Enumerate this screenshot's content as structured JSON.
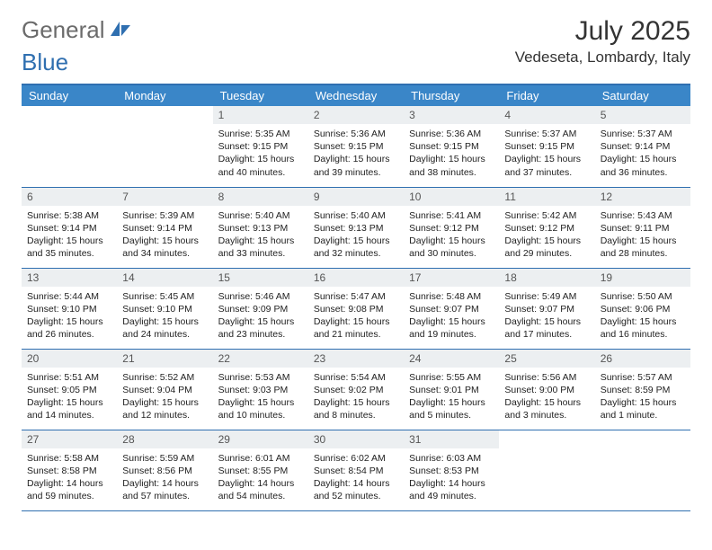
{
  "logo": {
    "word1": "General",
    "word2": "Blue"
  },
  "title": "July 2025",
  "location": "Vedeseta, Lombardy, Italy",
  "colors": {
    "header_bg": "#3a86c8",
    "header_text": "#ffffff",
    "border": "#2f6fb0",
    "daynum_bg": "#eceff1",
    "daynum_text": "#555555",
    "body_text": "#222222",
    "logo_blue": "#2f6fb0",
    "logo_gray": "#6b6b6b"
  },
  "day_labels": [
    "Sunday",
    "Monday",
    "Tuesday",
    "Wednesday",
    "Thursday",
    "Friday",
    "Saturday"
  ],
  "weeks": [
    [
      null,
      null,
      {
        "n": "1",
        "sr": "5:35 AM",
        "ss": "9:15 PM",
        "dl": "15 hours and 40 minutes."
      },
      {
        "n": "2",
        "sr": "5:36 AM",
        "ss": "9:15 PM",
        "dl": "15 hours and 39 minutes."
      },
      {
        "n": "3",
        "sr": "5:36 AM",
        "ss": "9:15 PM",
        "dl": "15 hours and 38 minutes."
      },
      {
        "n": "4",
        "sr": "5:37 AM",
        "ss": "9:15 PM",
        "dl": "15 hours and 37 minutes."
      },
      {
        "n": "5",
        "sr": "5:37 AM",
        "ss": "9:14 PM",
        "dl": "15 hours and 36 minutes."
      }
    ],
    [
      {
        "n": "6",
        "sr": "5:38 AM",
        "ss": "9:14 PM",
        "dl": "15 hours and 35 minutes."
      },
      {
        "n": "7",
        "sr": "5:39 AM",
        "ss": "9:14 PM",
        "dl": "15 hours and 34 minutes."
      },
      {
        "n": "8",
        "sr": "5:40 AM",
        "ss": "9:13 PM",
        "dl": "15 hours and 33 minutes."
      },
      {
        "n": "9",
        "sr": "5:40 AM",
        "ss": "9:13 PM",
        "dl": "15 hours and 32 minutes."
      },
      {
        "n": "10",
        "sr": "5:41 AM",
        "ss": "9:12 PM",
        "dl": "15 hours and 30 minutes."
      },
      {
        "n": "11",
        "sr": "5:42 AM",
        "ss": "9:12 PM",
        "dl": "15 hours and 29 minutes."
      },
      {
        "n": "12",
        "sr": "5:43 AM",
        "ss": "9:11 PM",
        "dl": "15 hours and 28 minutes."
      }
    ],
    [
      {
        "n": "13",
        "sr": "5:44 AM",
        "ss": "9:10 PM",
        "dl": "15 hours and 26 minutes."
      },
      {
        "n": "14",
        "sr": "5:45 AM",
        "ss": "9:10 PM",
        "dl": "15 hours and 24 minutes."
      },
      {
        "n": "15",
        "sr": "5:46 AM",
        "ss": "9:09 PM",
        "dl": "15 hours and 23 minutes."
      },
      {
        "n": "16",
        "sr": "5:47 AM",
        "ss": "9:08 PM",
        "dl": "15 hours and 21 minutes."
      },
      {
        "n": "17",
        "sr": "5:48 AM",
        "ss": "9:07 PM",
        "dl": "15 hours and 19 minutes."
      },
      {
        "n": "18",
        "sr": "5:49 AM",
        "ss": "9:07 PM",
        "dl": "15 hours and 17 minutes."
      },
      {
        "n": "19",
        "sr": "5:50 AM",
        "ss": "9:06 PM",
        "dl": "15 hours and 16 minutes."
      }
    ],
    [
      {
        "n": "20",
        "sr": "5:51 AM",
        "ss": "9:05 PM",
        "dl": "15 hours and 14 minutes."
      },
      {
        "n": "21",
        "sr": "5:52 AM",
        "ss": "9:04 PM",
        "dl": "15 hours and 12 minutes."
      },
      {
        "n": "22",
        "sr": "5:53 AM",
        "ss": "9:03 PM",
        "dl": "15 hours and 10 minutes."
      },
      {
        "n": "23",
        "sr": "5:54 AM",
        "ss": "9:02 PM",
        "dl": "15 hours and 8 minutes."
      },
      {
        "n": "24",
        "sr": "5:55 AM",
        "ss": "9:01 PM",
        "dl": "15 hours and 5 minutes."
      },
      {
        "n": "25",
        "sr": "5:56 AM",
        "ss": "9:00 PM",
        "dl": "15 hours and 3 minutes."
      },
      {
        "n": "26",
        "sr": "5:57 AM",
        "ss": "8:59 PM",
        "dl": "15 hours and 1 minute."
      }
    ],
    [
      {
        "n": "27",
        "sr": "5:58 AM",
        "ss": "8:58 PM",
        "dl": "14 hours and 59 minutes."
      },
      {
        "n": "28",
        "sr": "5:59 AM",
        "ss": "8:56 PM",
        "dl": "14 hours and 57 minutes."
      },
      {
        "n": "29",
        "sr": "6:01 AM",
        "ss": "8:55 PM",
        "dl": "14 hours and 54 minutes."
      },
      {
        "n": "30",
        "sr": "6:02 AM",
        "ss": "8:54 PM",
        "dl": "14 hours and 52 minutes."
      },
      {
        "n": "31",
        "sr": "6:03 AM",
        "ss": "8:53 PM",
        "dl": "14 hours and 49 minutes."
      },
      null,
      null
    ]
  ],
  "labels": {
    "sunrise": "Sunrise: ",
    "sunset": "Sunset: ",
    "daylight": "Daylight: "
  }
}
